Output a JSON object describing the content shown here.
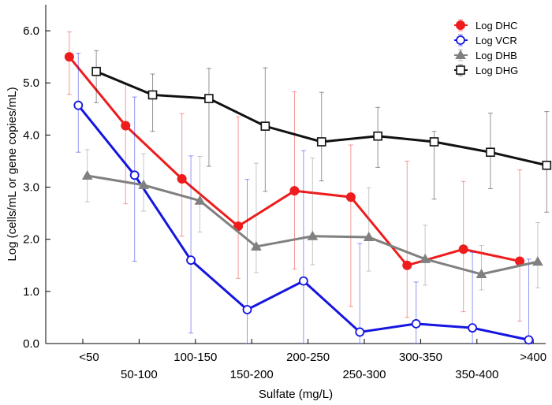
{
  "chart_data": {
    "type": "line",
    "title": "",
    "xlabel": "Sulfate (mg/L)",
    "ylabel": "Log (cells/mL or gene copies/mL)",
    "categories": [
      "<50",
      "50-100",
      "100-150",
      "150-200",
      "200-250",
      "250-300",
      "300-350",
      "350-400",
      ">400"
    ],
    "ylim": [
      0,
      6.5
    ],
    "yticks": [
      0,
      1,
      2,
      3,
      4,
      5,
      6
    ],
    "ytick_labels": [
      "0.0",
      "1.0",
      "2.0",
      "3.0",
      "4.0",
      "5.0",
      "6.0"
    ],
    "grid": false,
    "legend_position": "top-right",
    "series": [
      {
        "name": "Log DHC",
        "color": "#ee1c1c",
        "marker": "filled-circle",
        "offset": -0.24,
        "values": [
          5.5,
          4.18,
          3.16,
          2.25,
          2.93,
          2.81,
          1.5,
          1.81,
          1.58
        ],
        "err_low": [
          0.72,
          1.5,
          1.1,
          1.0,
          1.5,
          2.1,
          1.0,
          1.2,
          1.15
        ],
        "err_high": [
          0.48,
          0.8,
          1.25,
          2.1,
          1.9,
          1.0,
          2.0,
          1.3,
          1.75
        ]
      },
      {
        "name": "Log VCR",
        "color": "#1515e0",
        "marker": "open-circle",
        "offset": -0.08,
        "values": [
          4.57,
          3.23,
          1.6,
          0.65,
          1.2,
          0.22,
          0.38,
          0.3,
          0.07
        ],
        "err_low": [
          0.9,
          1.65,
          1.4,
          0.65,
          1.2,
          0.22,
          0.38,
          0.3,
          0.07
        ],
        "err_high": [
          1.0,
          1.5,
          2.0,
          2.5,
          2.5,
          1.7,
          0.8,
          1.45,
          1.55
        ]
      },
      {
        "name": "Log DHB",
        "color": "#808080",
        "marker": "filled-triangle",
        "offset": 0.08,
        "values": [
          3.22,
          3.04,
          2.74,
          1.86,
          2.06,
          2.04,
          1.62,
          1.33,
          1.57
        ],
        "err_low": [
          0.5,
          0.5,
          0.6,
          0.5,
          0.55,
          0.65,
          0.5,
          0.3,
          0.5
        ],
        "err_high": [
          0.5,
          0.6,
          0.85,
          1.6,
          1.5,
          0.95,
          0.65,
          0.55,
          0.75
        ]
      },
      {
        "name": "Log DHG",
        "color": "#111111",
        "marker": "open-square",
        "offset": 0.24,
        "values": [
          5.22,
          4.77,
          4.7,
          4.17,
          3.87,
          3.98,
          3.87,
          3.67,
          3.42
        ],
        "err_low": [
          0.6,
          0.7,
          1.3,
          1.25,
          0.75,
          0.6,
          1.1,
          0.7,
          0.9
        ],
        "err_high": [
          0.4,
          0.4,
          0.58,
          1.12,
          0.95,
          0.55,
          0.2,
          0.75,
          1.03
        ]
      }
    ]
  }
}
